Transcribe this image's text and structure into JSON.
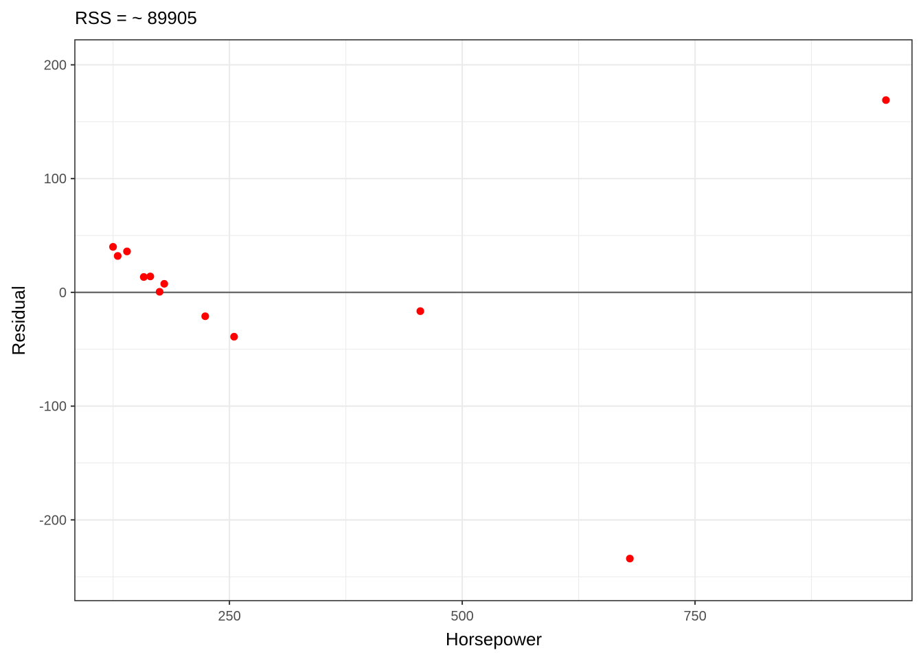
{
  "chart_data": {
    "type": "scatter",
    "title": "RSS = ~ 89905",
    "xlabel": "Horsepower",
    "ylabel": "Residual",
    "xlim": [
      84,
      983
    ],
    "ylim": [
      -271,
      222
    ],
    "x_ticks": [
      250,
      500,
      750
    ],
    "x_tick_labels": [
      "250",
      "500",
      "750"
    ],
    "y_ticks": [
      200,
      100,
      0,
      -100,
      -200
    ],
    "y_tick_labels": [
      "200",
      "100",
      "0",
      "-100",
      "-200"
    ],
    "reference_line_y": 0,
    "grid": true,
    "point_color": "#ff0000",
    "series": [
      {
        "x": [
          125,
          130,
          140,
          158,
          165,
          175,
          180,
          224,
          255,
          455,
          680,
          955
        ],
        "y": [
          40,
          32,
          36,
          13.5,
          14,
          0.5,
          7.5,
          -21,
          -39,
          -16.5,
          -234,
          169
        ]
      }
    ]
  }
}
